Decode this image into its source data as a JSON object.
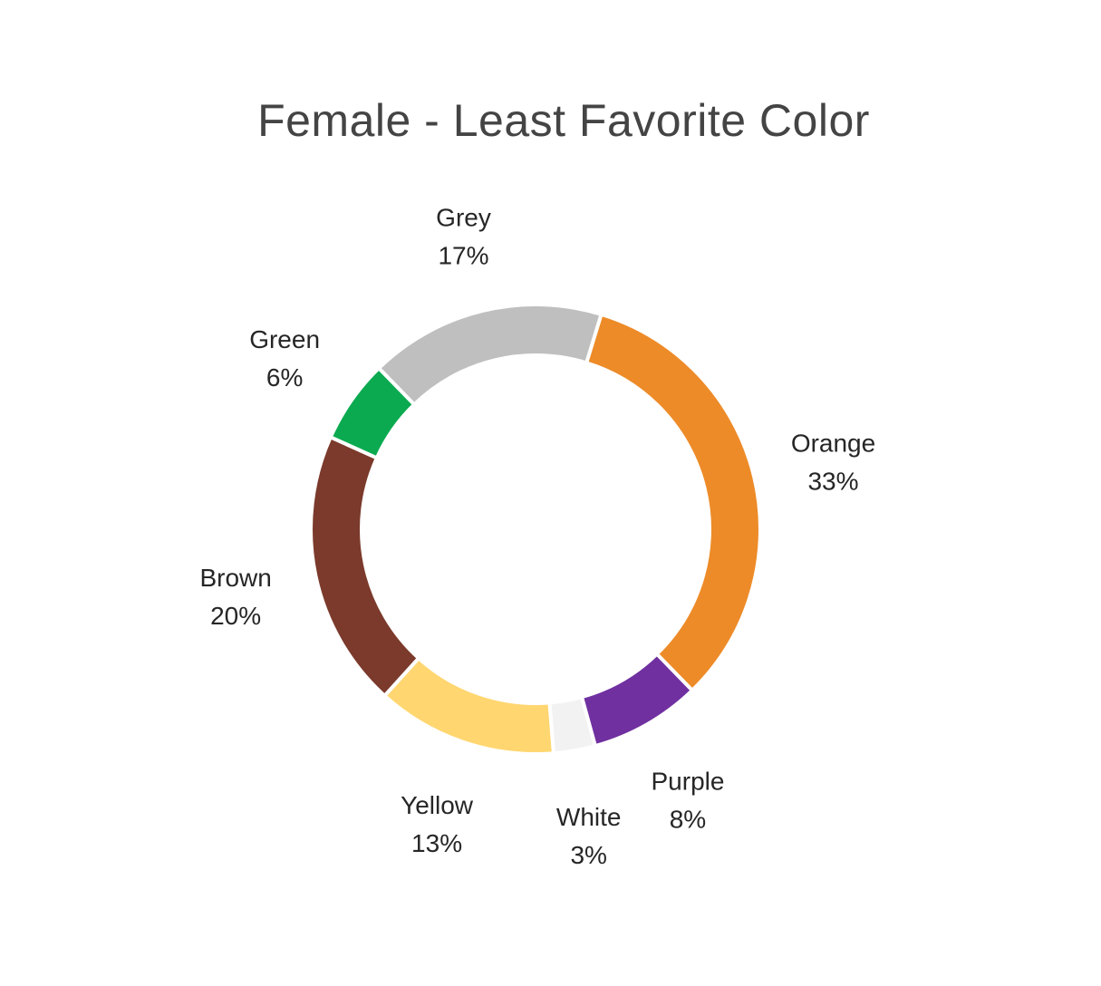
{
  "chart_data": {
    "type": "pie",
    "donut": true,
    "title": "Female - Least Favorite Color",
    "slices": [
      {
        "label": "Orange",
        "value": 33,
        "display": "33%",
        "color": "#ED8B28"
      },
      {
        "label": "Purple",
        "value": 8,
        "display": "8%",
        "color": "#7030A0"
      },
      {
        "label": "White",
        "value": 3,
        "display": "3%",
        "color": "#F2F2F2"
      },
      {
        "label": "Yellow",
        "value": 13,
        "display": "13%",
        "color": "#FFD670"
      },
      {
        "label": "Brown",
        "value": 20,
        "display": "20%",
        "color": "#7B3A2B"
      },
      {
        "label": "Green",
        "value": 6,
        "display": "6%",
        "color": "#0BAA50"
      },
      {
        "label": "Grey",
        "value": 17,
        "display": "17%",
        "color": "#BFBFBF"
      }
    ],
    "legend": "none",
    "data_labels": "outside"
  }
}
